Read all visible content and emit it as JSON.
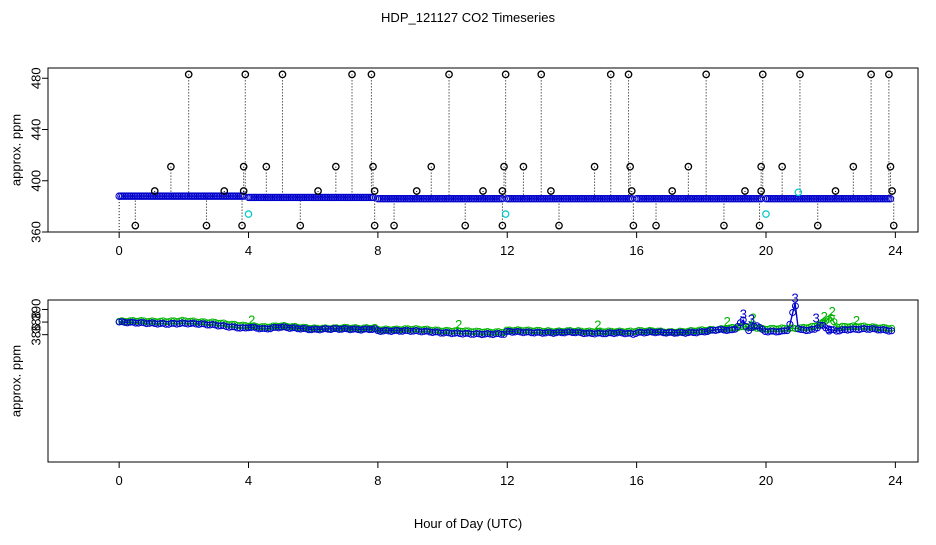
{
  "chart_data": {
    "title": "HDP_121127  CO2 Timeseries",
    "xlabel": "Hour of Day (UTC)",
    "colors": {
      "outlier": "#000000",
      "series_blue": "#0000cc",
      "series_green": "#00b400",
      "cyan": "#00c8c8"
    },
    "panels": [
      {
        "type": "scatter",
        "ylabel": "approx. ppm",
        "xlim": [
          -2.2,
          24.7
        ],
        "ylim": [
          360,
          488
        ],
        "xticks": [
          0,
          4,
          8,
          12,
          16,
          20,
          24
        ],
        "yticks": [
          360,
          400,
          440,
          480
        ],
        "grid": false,
        "baseline_segments": [
          {
            "x": [
              0.0,
              3.9
            ],
            "y": 388
          },
          {
            "x": [
              4.0,
              7.9
            ],
            "y": 387
          },
          {
            "x": [
              8.0,
              11.9
            ],
            "y": 386
          },
          {
            "x": [
              12.0,
              15.9
            ],
            "y": 386
          },
          {
            "x": [
              16.0,
              19.9
            ],
            "y": 386
          },
          {
            "x": [
              20.0,
              23.9
            ],
            "y": 386
          }
        ],
        "high_outliers_x": [
          2.15,
          3.9,
          5.05,
          7.2,
          7.8,
          10.2,
          11.95,
          13.05,
          15.2,
          15.75,
          18.15,
          19.9,
          21.05,
          23.25,
          23.8
        ],
        "high_outliers_y": 483,
        "mid_outliers_x": [
          1.6,
          3.85,
          4.55,
          6.7,
          7.85,
          9.65,
          11.9,
          12.5,
          14.7,
          15.8,
          17.6,
          19.85,
          20.5,
          22.7,
          23.85
        ],
        "mid_outliers_y": 411,
        "near_outliers_x": [
          1.1,
          3.25,
          3.85,
          6.15,
          7.9,
          9.2,
          11.25,
          11.85,
          13.35,
          15.85,
          17.1,
          19.35,
          19.85,
          22.15,
          23.9
        ],
        "near_outliers_y": 392,
        "low_outliers_x": [
          0.5,
          2.7,
          3.8,
          5.6,
          7.9,
          8.5,
          10.7,
          11.85,
          13.6,
          15.9,
          16.6,
          18.7,
          19.8,
          21.6,
          23.95
        ],
        "low_outliers_y": 365,
        "cyan_points": [
          {
            "x": 4.0,
            "y": 374
          },
          {
            "x": 11.95,
            "y": 374
          },
          {
            "x": 20.0,
            "y": 374
          },
          {
            "x": 21.0,
            "y": 391
          }
        ]
      },
      {
        "type": "line",
        "ylabel": "approx. ppm",
        "xlim": [
          -2.2,
          24.7
        ],
        "ylim": [
          365.8,
          391.5
        ],
        "xticks": [
          0,
          4,
          8,
          12,
          16,
          20,
          24
        ],
        "yticks": [
          386,
          388,
          390
        ],
        "grid": false,
        "series": [
          {
            "name": "3",
            "color": "#0000cc",
            "x": [
              0.0,
              0.5,
              1.0,
              1.5,
              2.0,
              2.5,
              3.0,
              3.5,
              3.9,
              4.0,
              4.5,
              5.0,
              5.5,
              6.0,
              6.5,
              7.0,
              7.5,
              7.9,
              8.0,
              8.5,
              9.0,
              9.5,
              10.0,
              10.5,
              11.0,
              11.5,
              11.9,
              12.0,
              12.5,
              13.0,
              13.5,
              14.0,
              14.5,
              15.0,
              15.5,
              15.9,
              16.0,
              16.5,
              17.0,
              17.5,
              18.0,
              18.5,
              19.0,
              19.3,
              19.45,
              19.7,
              19.9,
              20.0,
              20.5,
              20.7,
              20.9,
              21.0,
              21.2,
              21.5,
              21.7,
              21.9,
              22.2,
              22.5,
              23.0,
              23.3,
              23.5,
              23.9
            ],
            "y": [
              388.0,
              387.9,
              387.8,
              387.7,
              387.8,
              387.7,
              387.5,
              387.2,
              387.0,
              387.2,
              386.9,
              387.2,
              387.0,
              386.8,
              386.9,
              386.9,
              386.8,
              386.9,
              386.6,
              386.6,
              386.6,
              386.5,
              386.3,
              386.2,
              386.1,
              386.1,
              386.1,
              386.5,
              386.4,
              386.3,
              386.3,
              386.4,
              386.2,
              386.2,
              386.3,
              386.1,
              386.3,
              386.4,
              386.3,
              386.3,
              386.4,
              386.8,
              386.7,
              388.3,
              386.6,
              387.6,
              386.7,
              386.5,
              386.5,
              386.8,
              391.0,
              386.8,
              386.7,
              386.8,
              387.6,
              386.9,
              386.6,
              386.8,
              386.9,
              386.9,
              386.8,
              386.6
            ],
            "point_labels": [
              {
                "x": 19.3,
                "y": 388.6
              },
              {
                "x": 19.55,
                "y": 387.8
              },
              {
                "x": 20.9,
                "y": 391.1
              },
              {
                "x": 21.55,
                "y": 387.9
              },
              {
                "x": 21.95,
                "y": 386.0
              }
            ]
          },
          {
            "name": "2",
            "color": "#00b400",
            "x": [
              0.0,
              0.5,
              1.0,
              1.5,
              2.0,
              2.5,
              3.0,
              3.5,
              3.9,
              4.0,
              4.5,
              5.0,
              5.5,
              6.0,
              6.5,
              7.0,
              7.5,
              7.9,
              8.0,
              8.5,
              9.0,
              9.5,
              10.0,
              10.5,
              11.0,
              11.5,
              11.9,
              12.0,
              12.5,
              13.0,
              13.5,
              14.0,
              14.5,
              15.0,
              15.5,
              15.9,
              16.0,
              16.5,
              17.0,
              17.5,
              18.0,
              18.5,
              19.0,
              19.5,
              19.9,
              20.0,
              20.5,
              21.0,
              21.5,
              21.8,
              22.0,
              22.2,
              22.5,
              23.0,
              23.5,
              23.9
            ],
            "y": [
              388.1,
              388.2,
              388.1,
              388.1,
              388.2,
              388.0,
              387.9,
              387.6,
              387.4,
              387.4,
              387.2,
              387.4,
              387.2,
              387.0,
              387.0,
              387.1,
              387.0,
              387.1,
              386.8,
              386.8,
              386.9,
              386.8,
              386.6,
              386.6,
              386.5,
              386.4,
              386.4,
              386.7,
              386.7,
              386.6,
              386.5,
              386.6,
              386.5,
              386.5,
              386.5,
              386.5,
              386.6,
              386.6,
              386.4,
              386.5,
              386.7,
              386.8,
              387.1,
              387.3,
              386.9,
              386.9,
              387.0,
              387.0,
              387.3,
              388.0,
              388.8,
              387.2,
              387.3,
              387.3,
              387.1,
              387.0
            ],
            "point_labels": [
              {
                "x": 4.1,
                "y": 387.6
              },
              {
                "x": 10.5,
                "y": 386.9
              },
              {
                "x": 14.8,
                "y": 386.8
              },
              {
                "x": 18.8,
                "y": 387.4
              },
              {
                "x": 19.6,
                "y": 387.9
              },
              {
                "x": 21.8,
                "y": 388.2
              },
              {
                "x": 22.05,
                "y": 389.0
              },
              {
                "x": 22.8,
                "y": 387.5
              }
            ]
          }
        ]
      }
    ]
  }
}
